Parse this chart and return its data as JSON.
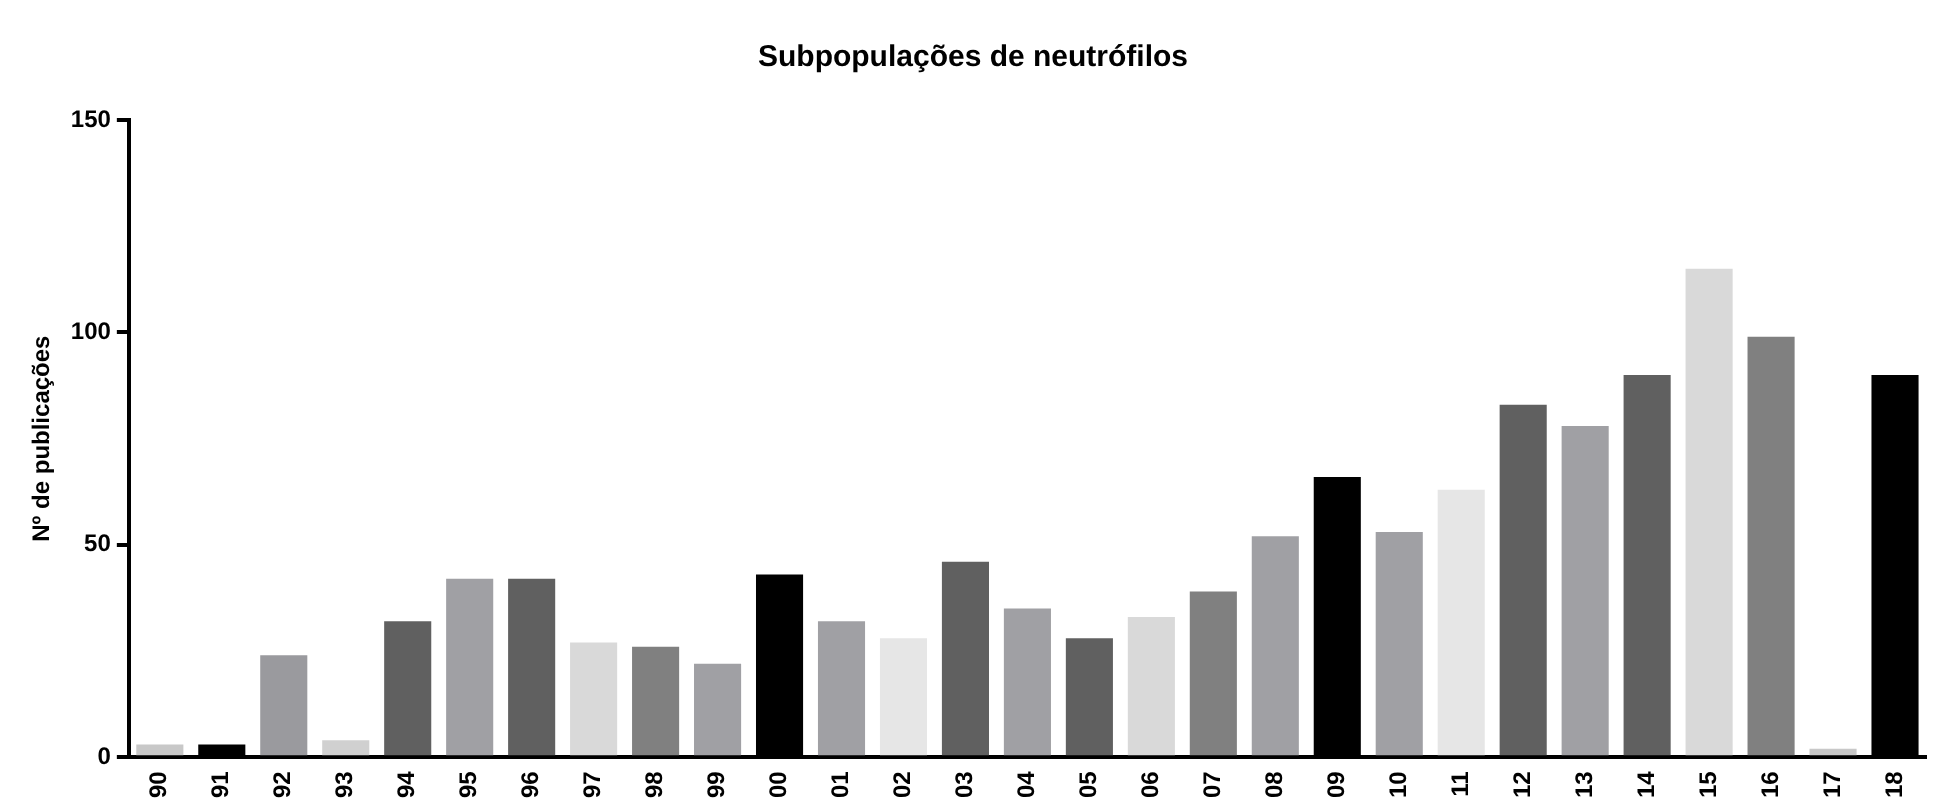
{
  "chart_data": {
    "type": "bar",
    "title": "Subpopulações de neutrófilos",
    "ylabel": "Nº de publicações",
    "categories": [
      "90",
      "91",
      "92",
      "93",
      "94",
      "95",
      "96",
      "97",
      "98",
      "99",
      "00",
      "01",
      "02",
      "03",
      "04",
      "05",
      "06",
      "07",
      "08",
      "09",
      "10",
      "11",
      "12",
      "13",
      "14",
      "15",
      "16",
      "17",
      "18"
    ],
    "values": [
      3,
      3,
      24,
      4,
      32,
      42,
      42,
      27,
      26,
      22,
      43,
      32,
      28,
      46,
      35,
      28,
      33,
      39,
      52,
      66,
      53,
      63,
      83,
      78,
      90,
      115,
      99,
      2,
      90
    ],
    "colors": [
      "#c8c8c8",
      "#000000",
      "#9a9a9e",
      "#d0d0d0",
      "#606060",
      "#a0a0a4",
      "#606060",
      "#d9d9d9",
      "#808080",
      "#a0a0a4",
      "#000000",
      "#a0a0a4",
      "#e6e6e6",
      "#606060",
      "#a0a0a4",
      "#606060",
      "#d9d9d9",
      "#808080",
      "#a0a0a4",
      "#000000",
      "#a0a0a4",
      "#e6e6e6",
      "#606060",
      "#a0a0a4",
      "#606060",
      "#d9d9d9",
      "#808080",
      "#c8c8c8",
      "#000000"
    ],
    "ylim": [
      0,
      150
    ],
    "yticks": [
      0,
      50,
      100,
      150
    ],
    "grid": false,
    "legend": false
  }
}
